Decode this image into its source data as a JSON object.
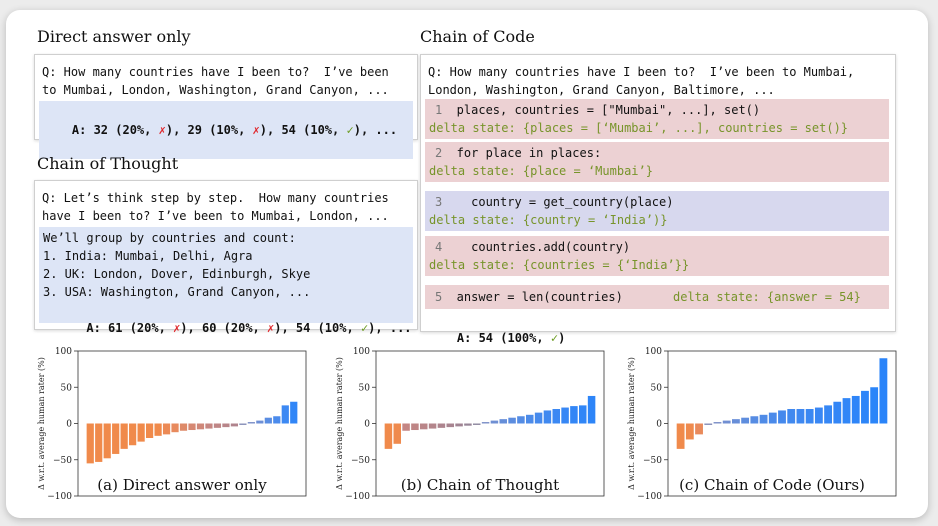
{
  "direct": {
    "title": "Direct answer only",
    "q1": "Q: How many countries have I been to?  I’ve been",
    "q2": "to Mumbai, London, Washington, Grand Canyon, ...",
    "a": {
      "p1": "A: 32 (20%, ",
      "x1": "✗",
      "p2": "), 29 (10%, ",
      "x2": "✗",
      "p3": "), 54 (10%, ",
      "c": "✓",
      "p4": "), ..."
    }
  },
  "cot": {
    "title": "Chain of Thought",
    "q1": "Q: Let’s think step by step.  How many countries",
    "q2": "have I been to? I’ve been to Mumbai, London, ...",
    "lines": [
      "We’ll group by countries and count:",
      "1. India: Mumbai, Delhi, Agra",
      "2. UK: London, Dover, Edinburgh, Skye",
      "3. USA: Washington, Grand Canyon, ..."
    ],
    "a": {
      "p1": "A: 61 (20%, ",
      "x1": "✗",
      "p2": "), 60 (20%, ",
      "x2": "✗",
      "p3": "), 54 (10%, ",
      "c": "✓",
      "p4": "), ..."
    }
  },
  "coc": {
    "title": "Chain of Code",
    "q1": "Q: How many countries have I been to?  I’ve been to Mumbai,",
    "q2": "London, Washington, Grand Canyon, Baltimore, ...",
    "steps": [
      {
        "num": "1",
        "code": "  places, countries = [\"Mumbai\", ...], set()",
        "delta": "delta state: {places = [‘Mumbai’, ...], countries = set()}"
      },
      {
        "num": "2",
        "code": "  for place in places:",
        "delta": "delta state: {place = ‘Mumbai’}"
      },
      {
        "num": "3",
        "code": "    country = get_country(place)",
        "delta": "delta state: {country = ‘India’)}"
      },
      {
        "num": "4",
        "code": "    countries.add(country)",
        "delta": "delta state: {countries = {‘India’}}"
      },
      {
        "num": "5",
        "code": "  answer = len(countries)",
        "delta": "delta state: {answer = 54}"
      }
    ],
    "a": {
      "p1": "A: 54 (100%, ",
      "c": "✓",
      "p2": ")"
    }
  },
  "chart_data": [
    {
      "type": "bar",
      "caption": "(a) Direct answer only",
      "ylabel": "Δ w.r.t. average human rater (%)",
      "ylim": [
        -100,
        100
      ],
      "yticks": [
        "100",
        "50",
        "0",
        "−50",
        "−100"
      ],
      "values": [
        -55,
        -53,
        -48,
        -42,
        -35,
        -30,
        -25,
        -20,
        -17,
        -15,
        -12,
        -10,
        -9,
        -8,
        -7,
        -6,
        -5,
        -4,
        -2,
        2,
        4,
        8,
        10,
        25,
        30
      ],
      "colors": [
        "#f08a4b",
        "#f08a4b",
        "#f08a4b",
        "#f08a4b",
        "#f08a4b",
        "#f08a4b",
        "#f08a4b",
        "#f08a4b",
        "#f08a4b",
        "#ec8a55",
        "#e88a5d",
        "#de8a68",
        "#d68872",
        "#cf8779",
        "#c58682",
        "#bf8686",
        "#b88589",
        "#b0848d",
        "#8890b8",
        "#7d90c8",
        "#6e8fd5",
        "#5a8de2",
        "#4b8bec",
        "#3d89f3",
        "#3186f7"
      ]
    },
    {
      "type": "bar",
      "caption": "(b) Chain of Thought",
      "ylabel": "Δ w.r.t. average human rater (%)",
      "ylim": [
        -100,
        100
      ],
      "yticks": [
        "100",
        "50",
        "0",
        "−50",
        "−100"
      ],
      "values": [
        -35,
        -28,
        -10,
        -9,
        -8,
        -7,
        -6,
        -5,
        -4,
        -3,
        -2,
        2,
        4,
        6,
        8,
        10,
        12,
        15,
        18,
        20,
        22,
        24,
        25,
        38
      ],
      "colors": [
        "#f08a4b",
        "#ef8a4d",
        "#c48683",
        "#bf8686",
        "#b98588",
        "#b3858b",
        "#ad848e",
        "#a88490",
        "#a08493",
        "#978597",
        "#8e889f",
        "#7d90c8",
        "#6f8fd3",
        "#658ed9",
        "#5c8ddf",
        "#548ce4",
        "#4c8be9",
        "#468aed",
        "#4089f0",
        "#3b88f3",
        "#3787f5",
        "#3386f6",
        "#3086f7",
        "#2d85f8"
      ]
    },
    {
      "type": "bar",
      "caption": "(c) Chain of Code (Ours)",
      "ylabel": "Δ w.r.t. average human rater (%)",
      "ylim": [
        -100,
        100
      ],
      "yticks": [
        "100",
        "50",
        "0",
        "−50",
        "−100"
      ],
      "values": [
        -35,
        -22,
        -15,
        -2,
        2,
        4,
        6,
        8,
        10,
        12,
        15,
        18,
        20,
        20,
        20,
        22,
        25,
        30,
        35,
        38,
        45,
        50,
        90
      ],
      "colors": [
        "#f08a4b",
        "#ef8a4d",
        "#e98a5b",
        "#8890b8",
        "#7d90c8",
        "#718fd2",
        "#678ed8",
        "#5e8dde",
        "#568ce3",
        "#4f8be7",
        "#4a8aea",
        "#4589ed",
        "#4189ef",
        "#3e88f1",
        "#3b88f2",
        "#3987f4",
        "#3687f5",
        "#3386f6",
        "#3186f7",
        "#2f85f8",
        "#2d85f8",
        "#2b85f9",
        "#2a84f9"
      ]
    }
  ]
}
